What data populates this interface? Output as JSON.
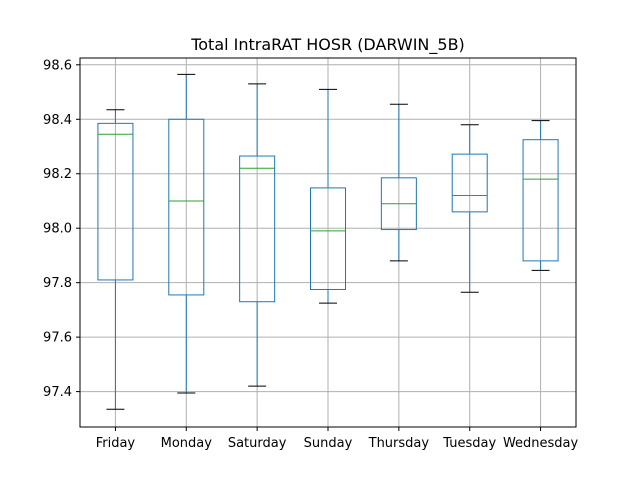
{
  "chart_data": {
    "type": "box",
    "title": "Total IntraRAT HOSR (DARWIN_5B)",
    "xlabel": "",
    "ylabel": "",
    "ylim": [
      97.27,
      98.625
    ],
    "yticks": [
      97.4,
      97.6,
      97.8,
      98.0,
      98.2,
      98.4,
      98.6
    ],
    "ytick_labels": [
      "97.4",
      "97.6",
      "97.8",
      "98.0",
      "98.2",
      "98.4",
      "98.6"
    ],
    "grid": true,
    "categories": [
      "Friday",
      "Monday",
      "Saturday",
      "Sunday",
      "Thursday",
      "Tuesday",
      "Wednesday"
    ],
    "boxes": [
      {
        "category": "Friday",
        "whisker_low": 97.335,
        "q1": 97.81,
        "median": 98.345,
        "q3": 98.385,
        "whisker_high": 98.435
      },
      {
        "category": "Monday",
        "whisker_low": 97.395,
        "q1": 97.755,
        "median": 98.1,
        "q3": 98.4,
        "whisker_high": 98.565
      },
      {
        "category": "Saturday",
        "whisker_low": 97.42,
        "q1": 97.73,
        "median": 98.22,
        "q3": 98.265,
        "whisker_high": 98.53
      },
      {
        "category": "Sunday",
        "whisker_low": 97.725,
        "q1": 97.775,
        "median": 97.99,
        "q3": 98.148,
        "whisker_high": 98.51
      },
      {
        "category": "Thursday",
        "whisker_low": 97.88,
        "q1": 97.995,
        "median": 98.09,
        "q3": 98.185,
        "whisker_high": 98.455
      },
      {
        "category": "Tuesday",
        "whisker_low": 97.765,
        "q1": 98.06,
        "median": 98.12,
        "q3": 98.272,
        "whisker_high": 98.38
      },
      {
        "category": "Wednesday",
        "whisker_low": 97.845,
        "q1": 97.88,
        "median": 98.18,
        "q3": 98.325,
        "whisker_high": 98.395
      }
    ],
    "colors": {
      "box": "#1f77b4",
      "median": "#2ca02c",
      "whisker_cap": "#000000",
      "grid": "#b0b0b0"
    }
  }
}
